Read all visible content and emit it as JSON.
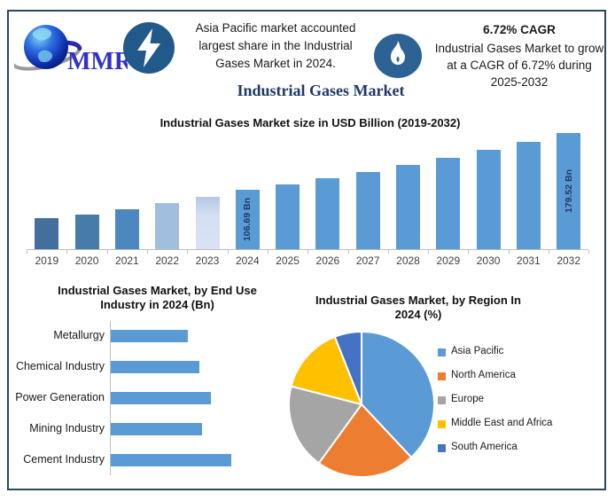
{
  "title": "Industrial Gases Market",
  "header": {
    "logo_text": "MMR",
    "highlight": "Asia Pacific market accounted largest share in the Industrial Gases Market in 2024.",
    "cagr_heading": "6.72% CAGR",
    "cagr_detail": "Industrial Gases Market to grow at a CAGR of 6.72% during 2025-2032"
  },
  "colors": {
    "accent_blue": "#5b9bd5",
    "title_navy": "#203864",
    "bar_label_navy": "#1f3864",
    "frame_border": "#2a4a57",
    "lightning_circle": "#20598a",
    "flame_circle": "#2d6394",
    "axis_gray": "#bfbfbf"
  },
  "chart_data": [
    {
      "type": "bar",
      "title": "Industrial Gases Market size in USD Billion (2019-2032)",
      "categories": [
        "2019",
        "2020",
        "2021",
        "2022",
        "2023",
        "2024",
        "2025",
        "2026",
        "2027",
        "2028",
        "2029",
        "2030",
        "2031",
        "2032"
      ],
      "values": [
        70,
        75,
        82,
        89,
        97,
        106.69,
        113.86,
        121.51,
        129.68,
        138.39,
        147.69,
        157.61,
        168.21,
        179.52
      ],
      "data_labels": {
        "2024": "106.69 Bn",
        "2032": "179.52 Bn"
      },
      "values_note": "Only the 2024 and 2032 bars carry printed values; remaining values estimated from bar heights and the stated 6.72% CAGR.",
      "bar_colors": [
        "#426f9b",
        "#477ba8",
        "#4c87bf",
        "#a2bede",
        "#ccd9ee",
        "#5b9bd5",
        "#5b9bd5",
        "#5b9bd5",
        "#5b9bd5",
        "#5b9bd5",
        "#5b9bd5",
        "#5b9bd5",
        "#5b9bd5",
        "#5b9bd5"
      ],
      "ylim": [
        30,
        190
      ],
      "grid": false,
      "legend": false
    },
    {
      "type": "bar",
      "orientation": "horizontal",
      "title": "Industrial Gases Market, by End Use Industry in 2024 (Bn)",
      "categories": [
        "Metallurgy",
        "Chemical Industry",
        "Power Generation",
        "Mining Industry",
        "Cement Industry"
      ],
      "values": [
        17.3,
        19.8,
        22.4,
        20.4,
        27.1
      ],
      "values_note": "No value axis shown; values estimated from relative bar lengths of the 106.69 Bn 2024 total.",
      "bar_color": "#5b9bd5",
      "xlim": [
        0,
        30
      ],
      "grid": false,
      "legend": false
    },
    {
      "type": "pie",
      "title": "Industrial Gases Market, by Region In 2024 (%)",
      "labels": [
        "Asia Pacific",
        "North America",
        "Europe",
        "Middle East and Africa",
        "South America"
      ],
      "values": [
        38,
        22,
        19,
        15,
        6
      ],
      "values_note": "No percentage labels printed; shares estimated from slice angles.",
      "colors": [
        "#5b9bd5",
        "#ed7d31",
        "#a5a5a5",
        "#ffc000",
        "#4472c4"
      ],
      "start_angle_deg": 0,
      "direction": "clockwise",
      "legend_position": "right"
    }
  ]
}
